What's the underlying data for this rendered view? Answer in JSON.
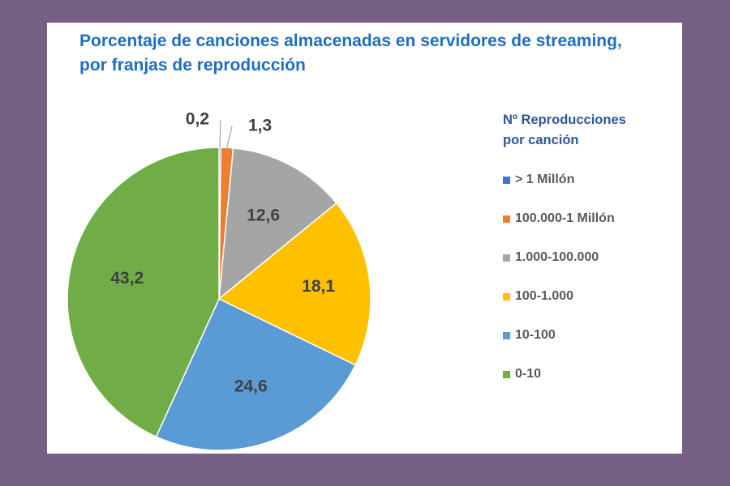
{
  "chart_data": {
    "type": "pie",
    "title": [
      "Porcentaje de canciones almacenadas  en servidores de streaming,",
      "por franjas de reproducción"
    ],
    "legend_title": [
      "Nº Reproducciones",
      "por canción"
    ],
    "legend_position": "right",
    "categories": [
      "> 1 Millón",
      "100.000-1 Millón",
      "1.000-100.000",
      "100-1.000",
      "10-100",
      "0-10"
    ],
    "values": [
      0.2,
      1.3,
      12.6,
      18.1,
      24.6,
      43.2
    ],
    "value_labels": [
      "0,2",
      "1,3",
      "12,6",
      "18,1",
      "24,6",
      "43,2"
    ],
    "colors": [
      "#4472c4",
      "#ed7d31",
      "#a5a5a5",
      "#ffc000",
      "#5b9bd5",
      "#70ad47"
    ]
  }
}
